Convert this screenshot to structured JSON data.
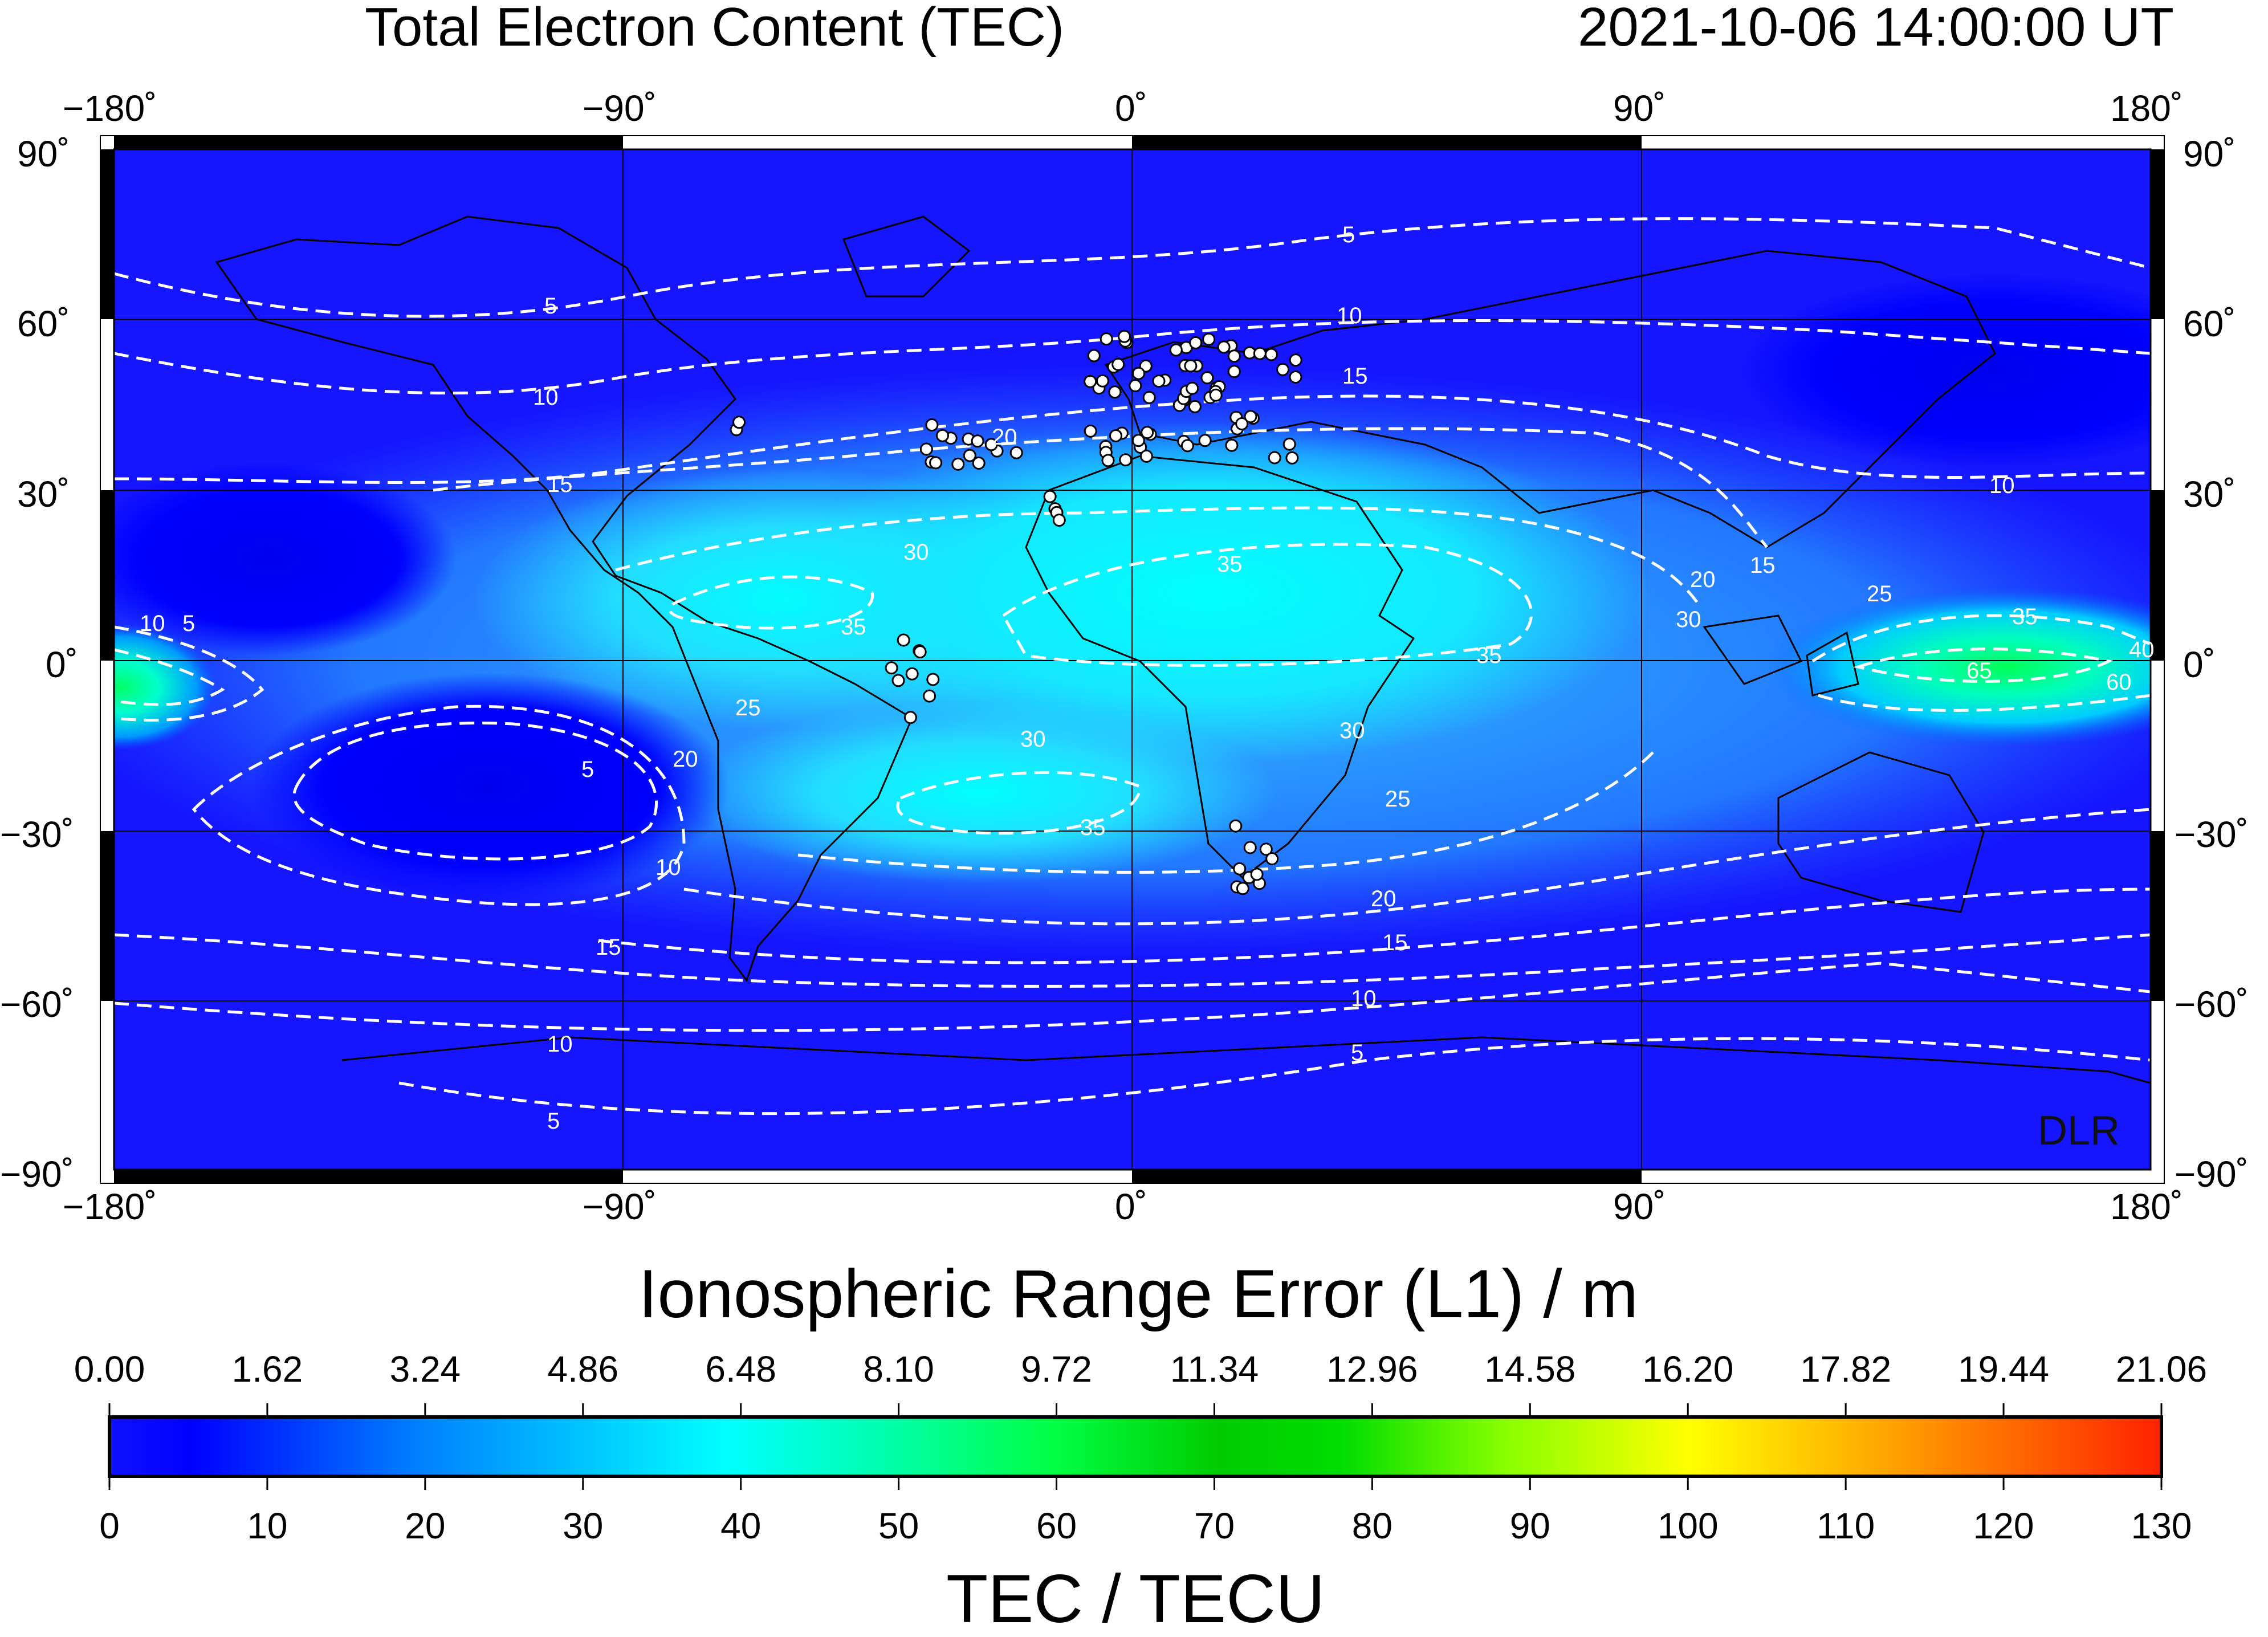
{
  "header": {
    "title": "Total Electron Content (TEC)",
    "timestamp": "2021-10-06  14:00:00 UT"
  },
  "map": {
    "lon_ticks": [
      "−180˚",
      "−90˚",
      "0˚",
      "90˚",
      "180˚"
    ],
    "lat_ticks": [
      "90˚",
      "60˚",
      "30˚",
      "0˚",
      "−30˚",
      "−60˚",
      "−90˚"
    ],
    "watermark": "DLR",
    "contour_labels": [
      "5",
      "10",
      "15",
      "20",
      "25",
      "30",
      "35",
      "40",
      "60",
      "65"
    ]
  },
  "range_error": {
    "title": "Ionospheric Range Error (L1) / m",
    "ticks": [
      "0.00",
      "1.62",
      "3.24",
      "4.86",
      "6.48",
      "8.10",
      "9.72",
      "11.34",
      "12.96",
      "14.58",
      "16.20",
      "17.82",
      "19.44",
      "21.06"
    ]
  },
  "tec_scale": {
    "title": "TEC / TECU",
    "ticks": [
      "0",
      "10",
      "20",
      "30",
      "40",
      "50",
      "60",
      "70",
      "80",
      "90",
      "100",
      "110",
      "120",
      "130"
    ],
    "colors": [
      "#0000ff",
      "#0000ff",
      "#0088ff",
      "#00ffff",
      "#00ff88",
      "#00ff00",
      "#00cc00",
      "#00dd00",
      "#88ff00",
      "#ffff00",
      "#ffaa00",
      "#ff6600",
      "#ff2200"
    ]
  },
  "stations": {
    "count": 120
  }
}
